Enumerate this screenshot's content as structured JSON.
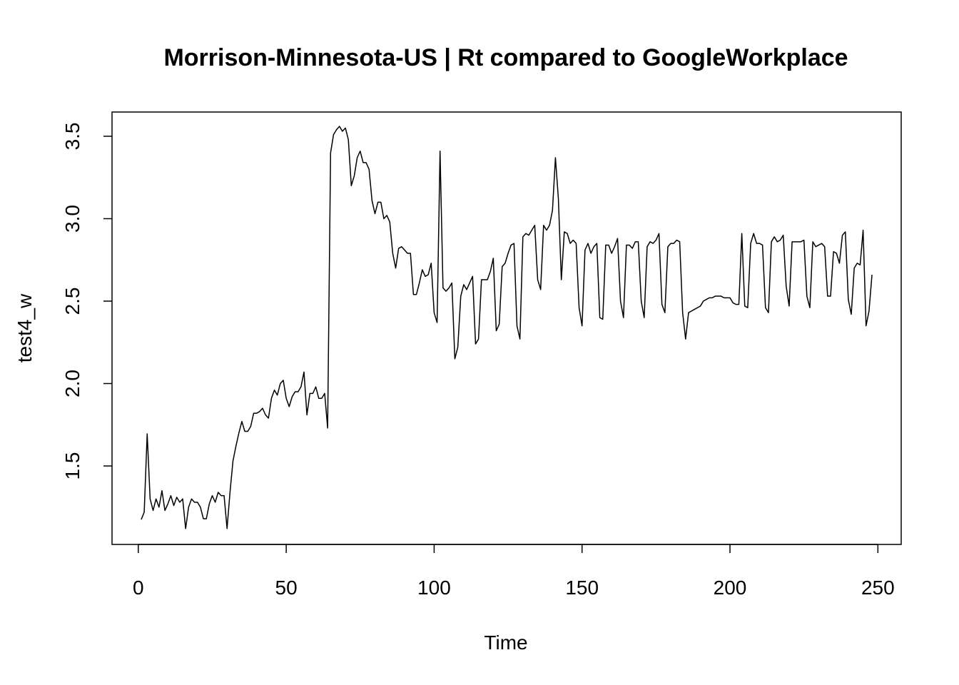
{
  "chart_data": {
    "type": "line",
    "title": "Morrison-Minnesota-US | Rt compared to GoogleWorkplace",
    "xlabel": "Time",
    "ylabel": "test4_w",
    "x": [
      1,
      2,
      3,
      4,
      5,
      6,
      7,
      8,
      9,
      10,
      11,
      12,
      13,
      14,
      15,
      16,
      17,
      18,
      19,
      20,
      21,
      22,
      23,
      24,
      25,
      26,
      27,
      28,
      29,
      30,
      31,
      32,
      33,
      34,
      35,
      36,
      37,
      38,
      39,
      40,
      41,
      42,
      43,
      44,
      45,
      46,
      47,
      48,
      49,
      50,
      51,
      52,
      53,
      54,
      55,
      56,
      57,
      58,
      59,
      60,
      61,
      62,
      63,
      64,
      65,
      66,
      67,
      68,
      69,
      70,
      71,
      72,
      73,
      74,
      75,
      76,
      77,
      78,
      79,
      80,
      81,
      82,
      83,
      84,
      85,
      86,
      87,
      88,
      89,
      90,
      91,
      92,
      93,
      94,
      95,
      96,
      97,
      98,
      99,
      100,
      101,
      102,
      103,
      104,
      105,
      106,
      107,
      108,
      109,
      110,
      111,
      112,
      113,
      114,
      115,
      116,
      117,
      118,
      119,
      120,
      121,
      122,
      123,
      124,
      125,
      126,
      127,
      128,
      129,
      130,
      131,
      132,
      133,
      134,
      135,
      136,
      137,
      138,
      139,
      140,
      141,
      142,
      143,
      144,
      145,
      146,
      147,
      148,
      149,
      150,
      151,
      152,
      153,
      154,
      155,
      156,
      157,
      158,
      159,
      160,
      161,
      162,
      163,
      164,
      165,
      166,
      167,
      168,
      169,
      170,
      171,
      172,
      173,
      174,
      175,
      176,
      177,
      178,
      179,
      180,
      181,
      182,
      183,
      184,
      185,
      186,
      187,
      188,
      189,
      190,
      191,
      192,
      193,
      194,
      195,
      196,
      197,
      198,
      199,
      200,
      201,
      202,
      203,
      204,
      205,
      206,
      207,
      208,
      209,
      210,
      211,
      212,
      213,
      214,
      215,
      216,
      217,
      218,
      219,
      220,
      221,
      222,
      223,
      224,
      225,
      226,
      227,
      228,
      229,
      230,
      231,
      232,
      233,
      234,
      235,
      236,
      237,
      238,
      239,
      240,
      241,
      242,
      243,
      244,
      245,
      246,
      247,
      248
    ],
    "series": [
      {
        "name": "test4_w",
        "color": "#000000",
        "values": [
          1.175,
          1.22,
          1.695,
          1.3,
          1.23,
          1.3,
          1.25,
          1.35,
          1.23,
          1.27,
          1.32,
          1.26,
          1.31,
          1.28,
          1.3,
          1.12,
          1.25,
          1.3,
          1.28,
          1.28,
          1.25,
          1.18,
          1.18,
          1.27,
          1.32,
          1.28,
          1.34,
          1.32,
          1.32,
          1.12,
          1.34,
          1.53,
          1.62,
          1.7,
          1.77,
          1.71,
          1.71,
          1.74,
          1.82,
          1.82,
          1.83,
          1.85,
          1.81,
          1.79,
          1.91,
          1.96,
          1.93,
          2.0,
          2.02,
          1.91,
          1.86,
          1.92,
          1.95,
          1.95,
          1.98,
          2.07,
          1.81,
          1.94,
          1.94,
          1.98,
          1.91,
          1.91,
          1.94,
          1.73,
          3.4,
          3.51,
          3.54,
          3.56,
          3.53,
          3.55,
          3.48,
          3.2,
          3.26,
          3.37,
          3.41,
          3.34,
          3.34,
          3.3,
          3.11,
          3.03,
          3.1,
          3.1,
          3.0,
          3.02,
          2.98,
          2.79,
          2.7,
          2.82,
          2.83,
          2.81,
          2.79,
          2.79,
          2.54,
          2.54,
          2.61,
          2.69,
          2.65,
          2.66,
          2.73,
          2.43,
          2.37,
          3.41,
          2.58,
          2.56,
          2.58,
          2.61,
          2.15,
          2.22,
          2.53,
          2.6,
          2.57,
          2.61,
          2.65,
          2.24,
          2.27,
          2.63,
          2.63,
          2.63,
          2.68,
          2.76,
          2.32,
          2.36,
          2.71,
          2.73,
          2.79,
          2.84,
          2.85,
          2.35,
          2.27,
          2.89,
          2.91,
          2.9,
          2.93,
          2.96,
          2.63,
          2.57,
          2.96,
          2.93,
          2.96,
          3.05,
          3.37,
          3.12,
          2.63,
          2.92,
          2.91,
          2.85,
          2.87,
          2.85,
          2.46,
          2.35,
          2.81,
          2.85,
          2.79,
          2.83,
          2.85,
          2.4,
          2.39,
          2.84,
          2.84,
          2.79,
          2.83,
          2.88,
          2.5,
          2.4,
          2.84,
          2.84,
          2.82,
          2.86,
          2.86,
          2.5,
          2.4,
          2.83,
          2.86,
          2.85,
          2.87,
          2.91,
          2.48,
          2.43,
          2.83,
          2.85,
          2.85,
          2.87,
          2.86,
          2.43,
          2.27,
          2.43,
          2.44,
          2.45,
          2.46,
          2.47,
          2.5,
          2.51,
          2.52,
          2.52,
          2.53,
          2.53,
          2.53,
          2.52,
          2.52,
          2.52,
          2.49,
          2.48,
          2.48,
          2.91,
          2.47,
          2.46,
          2.85,
          2.91,
          2.85,
          2.85,
          2.84,
          2.46,
          2.43,
          2.86,
          2.89,
          2.86,
          2.87,
          2.9,
          2.59,
          2.47,
          2.86,
          2.86,
          2.86,
          2.86,
          2.87,
          2.53,
          2.46,
          2.86,
          2.83,
          2.84,
          2.85,
          2.83,
          2.53,
          2.53,
          2.8,
          2.79,
          2.73,
          2.9,
          2.92,
          2.51,
          2.42,
          2.7,
          2.73,
          2.72,
          2.93,
          2.35,
          2.44,
          2.66
        ]
      }
    ],
    "xlim": [
      -8.88,
      257.88
    ],
    "xticks": [
      0,
      50,
      100,
      150,
      200,
      250
    ],
    "ylim": [
      1.024,
      3.647
    ],
    "yticks": [
      1.5,
      {
        "value": 2,
        "label": "2.0"
      },
      2.5,
      {
        "value": 3,
        "label": "3.0"
      },
      3.5
    ]
  }
}
